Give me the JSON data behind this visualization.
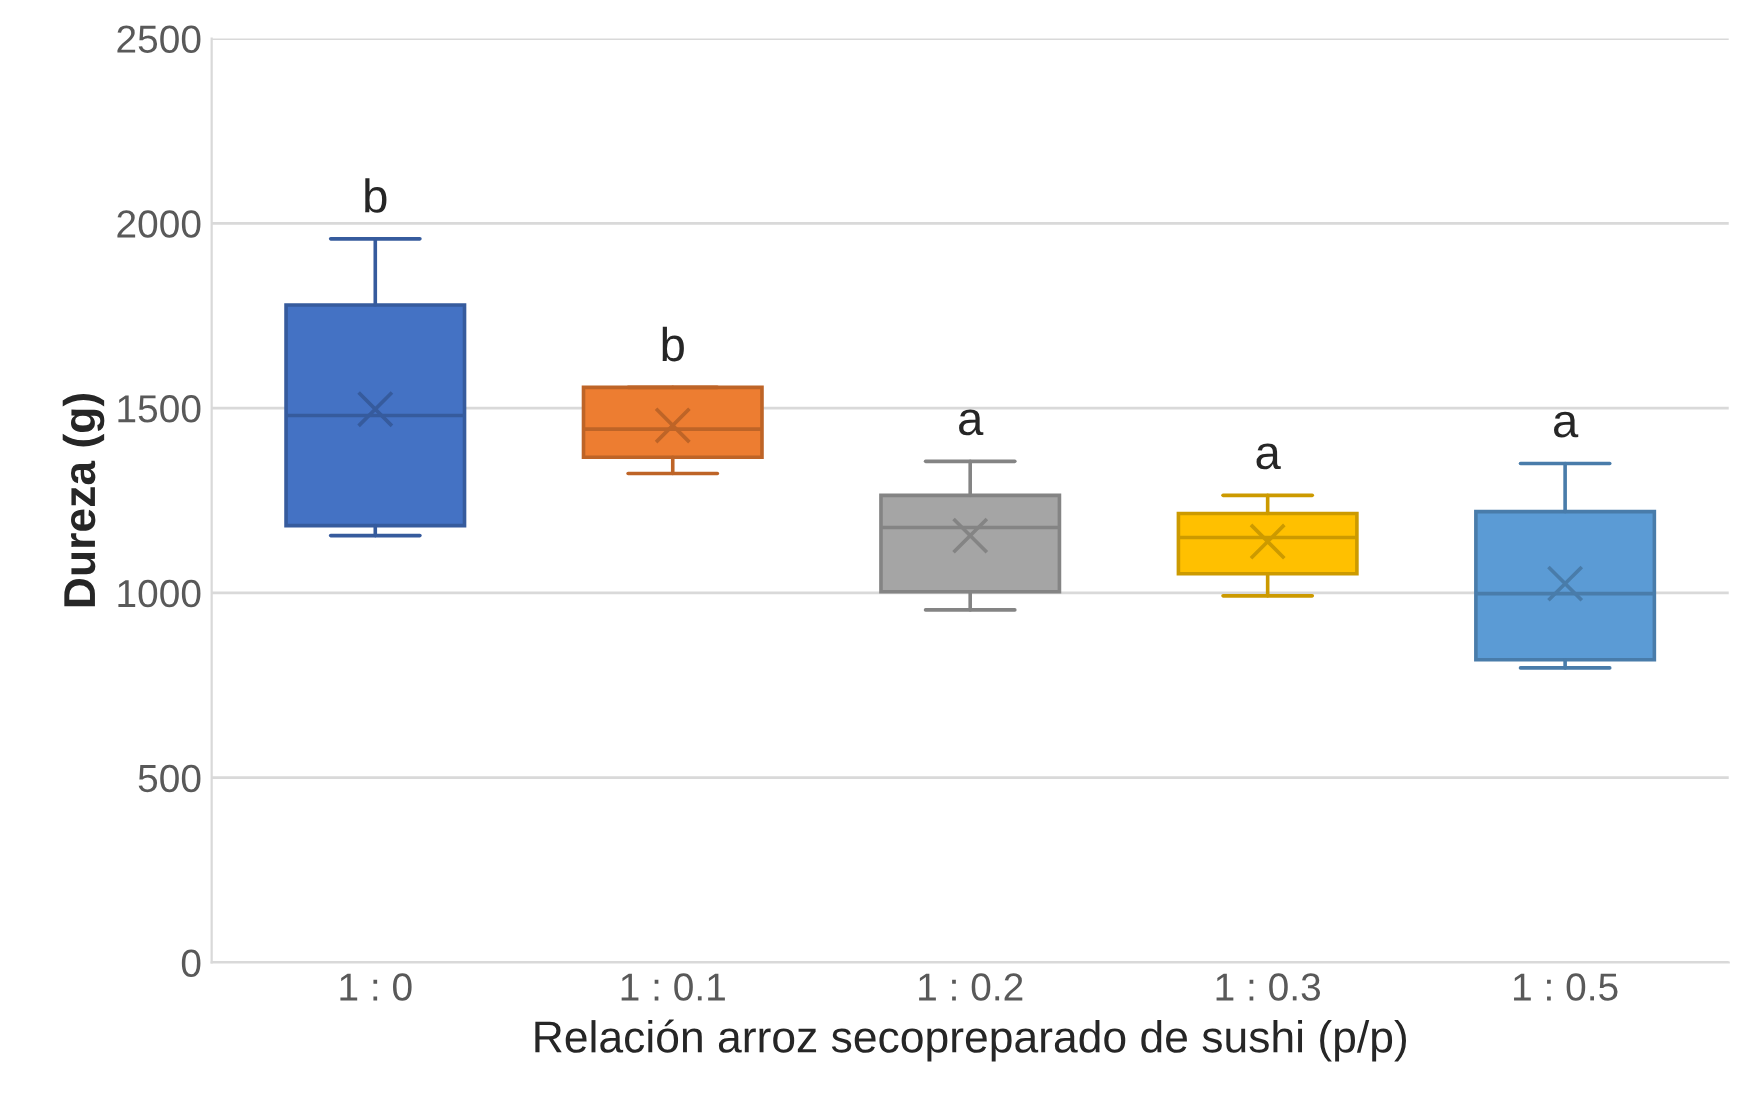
{
  "chart_data": {
    "type": "box",
    "xlabel": "Relación arroz secopreparado de sushi (p/p)",
    "ylabel": "Dureza (g)",
    "categories": [
      "1 : 0",
      "1 : 0.1",
      "1 : 0.2",
      "1 : 0.3",
      "1 : 0.5"
    ],
    "colors": [
      "#4472c4",
      "#ed7d31",
      "#a5a5a5",
      "#ffc000",
      "#5b9bd5"
    ],
    "boxes": [
      {
        "low": 1155,
        "q1": 1182,
        "median": 1480,
        "q3": 1779,
        "high": 1958,
        "mean": 1497
      },
      {
        "low": 1323,
        "q1": 1367,
        "median": 1443,
        "q3": 1556,
        "high": 1556,
        "mean": 1453
      },
      {
        "low": 954,
        "q1": 1003,
        "median": 1177,
        "q3": 1264,
        "high": 1356,
        "mean": 1155
      },
      {
        "low": 992,
        "q1": 1052,
        "median": 1150,
        "q3": 1215,
        "high": 1264,
        "mean": 1139
      },
      {
        "low": 797,
        "q1": 819,
        "median": 998,
        "q3": 1220,
        "high": 1350,
        "mean": 1025
      }
    ],
    "ylim": [
      0,
      2500
    ],
    "yticks": [
      0,
      500,
      1000,
      1500,
      2000,
      2500
    ],
    "grid": "y",
    "annotations": [
      "b",
      "b",
      "a",
      "a",
      "a"
    ]
  }
}
